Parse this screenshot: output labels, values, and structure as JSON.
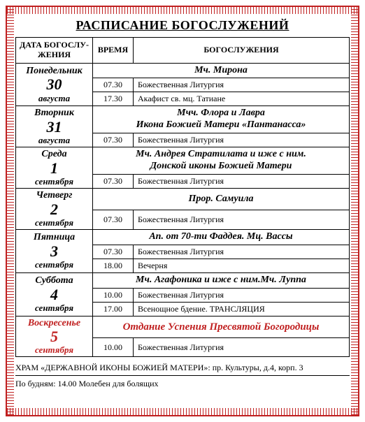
{
  "title": "РАСПИСАНИЕ БОГОСЛУЖЕНИЙ",
  "headers": {
    "date": "ДАТА БОГОСЛУ-ЖЕНИЯ",
    "time": "ВРЕМЯ",
    "service": "БОГОСЛУЖЕНИЯ"
  },
  "days": [
    {
      "dow": "Понедельник",
      "dnum": "30",
      "dmon": "августа",
      "feast": "Мч. Мирона",
      "rows": [
        {
          "time": "07.30",
          "service": "Божественная Литургия"
        },
        {
          "time": "17.30",
          "service": "Акафист св. мц. Татиане"
        }
      ]
    },
    {
      "dow": "Вторник",
      "dnum": "31",
      "dmon": "августа",
      "feast": "Мчч. Флора и Лавра\nИкона Божией Матери «Пантанасса»",
      "rows": [
        {
          "time": "07.30",
          "service": "Божественная Литургия"
        }
      ]
    },
    {
      "dow": "Среда",
      "dnum": "1",
      "dmon": "сентября",
      "feast": "Мч. Андрея Стратилата и иже с ним.\nДонской иконы Божией Матери",
      "rows": [
        {
          "time": "07.30",
          "service": "Божественная Литургия"
        }
      ]
    },
    {
      "dow": "Четверг",
      "dnum": "2",
      "dmon": "сентября",
      "feast": "Прор. Самуила",
      "rows": [
        {
          "time": "07.30",
          "service": "Божественная Литургия"
        }
      ]
    },
    {
      "dow": "Пятница",
      "dnum": "3",
      "dmon": "сентября",
      "feast": "Ап. от 70-ти Фаддея. Мц. Вассы",
      "rows": [
        {
          "time": "07.30",
          "service": "Божественная Литургия"
        },
        {
          "time": "18.00",
          "service": "Вечерня"
        }
      ]
    },
    {
      "dow": "Суббота",
      "dnum": "4",
      "dmon": "сентября",
      "feast": "Мч. Агафоника и иже с ним.Мч. Луппа",
      "rows": [
        {
          "time": "10.00",
          "service": "Божественная Литургия"
        },
        {
          "time": "17.00",
          "service": "Всенощное бдение. ТРАНСЛЯЦИЯ"
        }
      ]
    },
    {
      "dow": "Воскресенье",
      "dnum": "5",
      "dmon": "сентября",
      "sunday": true,
      "feast": "Отдание Успения Пресвятой Богородицы",
      "feast_red": true,
      "rows": [
        {
          "time": "10.00",
          "service": "Божественная Литургия"
        }
      ]
    }
  ],
  "footer": {
    "line1": "ХРАМ «ДЕРЖАВНОЙ ИКОНЫ БОЖИЕЙ МАТЕРИ»: пр. Культуры, д.4, корп. 3",
    "line2": "По будням: 14.00 Молебен для болящих"
  },
  "colors": {
    "accent": "#c02020",
    "border": "#000000",
    "background": "#ffffff"
  }
}
